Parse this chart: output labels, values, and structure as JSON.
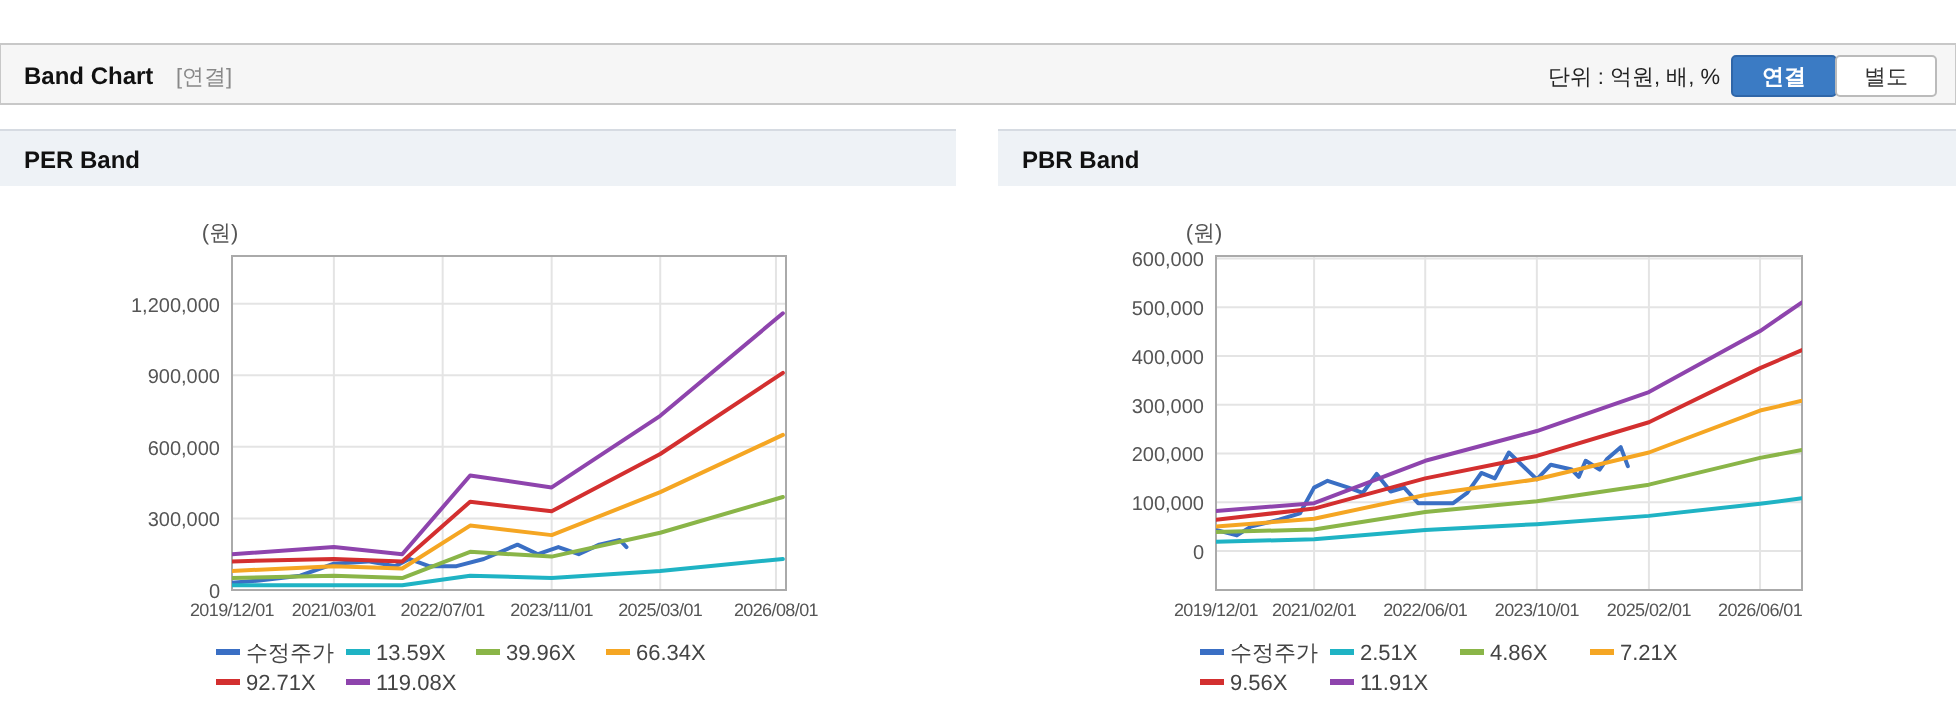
{
  "chart_data": [
    {
      "type": "other",
      "title": "Band Chart",
      "annotations": [
        "[연결]",
        "단위 : 억원, 배, %",
        "연결",
        "별도"
      ]
    },
    {
      "type": "line",
      "title": "PER Band",
      "ylabel": "(원)",
      "grid": true,
      "legend": "bottom",
      "xlim": [
        "2019-12-01",
        "2026-09-15"
      ],
      "ylim": [
        0,
        1400000
      ],
      "xticks": [
        {
          "value": "2019-12-01",
          "label": "2019/12/01"
        },
        {
          "value": "2021-03-01",
          "label": "2021/03/01"
        },
        {
          "value": "2022-07-01",
          "label": "2022/07/01"
        },
        {
          "value": "2023-11-01",
          "label": "2023/11/01"
        },
        {
          "value": "2025-03-01",
          "label": "2025/03/01"
        },
        {
          "value": "2026-08-01",
          "label": "2026/08/01"
        }
      ],
      "yticks": [
        0,
        {
          "value": 300000,
          "label": "300,000"
        },
        {
          "value": 600000,
          "label": "600,000"
        },
        {
          "value": 900000,
          "label": "900,000"
        },
        {
          "value": 1200000,
          "label": "1,200,000"
        }
      ],
      "series": [
        {
          "name": "수정주가",
          "color": "#3a6fc4",
          "x": [
            "2019-12",
            "2020-04",
            "2020-10",
            "2021-03",
            "2021-08",
            "2021-12",
            "2022-02",
            "2022-05",
            "2022-09",
            "2023-01",
            "2023-06",
            "2023-09",
            "2023-12",
            "2024-03",
            "2024-06",
            "2024-09",
            "2024-10"
          ],
          "values": [
            30000,
            40000,
            60000,
            110000,
            120000,
            100000,
            130000,
            100000,
            100000,
            130000,
            190000,
            150000,
            180000,
            150000,
            190000,
            210000,
            180000
          ]
        },
        {
          "name": "13.59X",
          "color": "#1fb3c4",
          "x": [
            "2019-12",
            "2022-01",
            "2022-11",
            "2023-11",
            "2025-03",
            "2026-09"
          ],
          "values": [
            20000,
            20000,
            60000,
            50000,
            80000,
            130000
          ]
        },
        {
          "name": "39.96X",
          "color": "#8ab548",
          "x": [
            "2019-12",
            "2021-03",
            "2022-01",
            "2022-11",
            "2023-11",
            "2025-03",
            "2026-09"
          ],
          "values": [
            50000,
            60000,
            50000,
            160000,
            140000,
            240000,
            390000
          ]
        },
        {
          "name": "66.34X",
          "color": "#f5a623",
          "x": [
            "2019-12",
            "2021-03",
            "2022-01",
            "2022-11",
            "2023-11",
            "2025-03",
            "2026-09"
          ],
          "values": [
            80000,
            100000,
            90000,
            270000,
            230000,
            410000,
            650000
          ]
        },
        {
          "name": "92.71X",
          "color": "#d32f2f",
          "x": [
            "2019-12",
            "2021-03",
            "2022-01",
            "2022-11",
            "2023-11",
            "2025-03",
            "2026-09"
          ],
          "values": [
            120000,
            130000,
            120000,
            370000,
            330000,
            570000,
            910000
          ]
        },
        {
          "name": "119.08X",
          "color": "#8e44ad",
          "x": [
            "2019-12",
            "2021-03",
            "2022-01",
            "2022-11",
            "2023-11",
            "2025-03",
            "2026-09"
          ],
          "values": [
            150000,
            180000,
            150000,
            480000,
            430000,
            730000,
            1160000
          ]
        }
      ]
    },
    {
      "type": "line",
      "title": "PBR Band",
      "ylabel": "(원)",
      "grid": true,
      "legend": "bottom",
      "xlim": [
        "2019-12-01",
        "2026-12-01"
      ],
      "ylim": [
        -80000,
        605000
      ],
      "xticks": [
        {
          "value": "2019-12-01",
          "label": "2019/12/01"
        },
        {
          "value": "2021-02-01",
          "label": "2021/02/01"
        },
        {
          "value": "2022-06-01",
          "label": "2022/06/01"
        },
        {
          "value": "2023-10-01",
          "label": "2023/10/01"
        },
        {
          "value": "2025-02-01",
          "label": "2025/02/01"
        },
        {
          "value": "2026-06-01",
          "label": "2026/06/01"
        }
      ],
      "yticks": [
        0,
        {
          "value": 100000,
          "label": "100,000"
        },
        {
          "value": 200000,
          "label": "200,000"
        },
        {
          "value": 300000,
          "label": "300,000"
        },
        {
          "value": 400000,
          "label": "400,000"
        },
        {
          "value": 500000,
          "label": "500,000"
        },
        {
          "value": 600000,
          "label": "600,000"
        }
      ],
      "series": [
        {
          "name": "수정주가",
          "color": "#3a6fc4",
          "x": [
            "2019-12",
            "2020-03",
            "2020-05",
            "2020-09",
            "2020-12",
            "2021-02",
            "2021-04",
            "2021-07",
            "2021-09",
            "2021-11",
            "2022-01",
            "2022-03",
            "2022-05",
            "2022-10",
            "2022-12",
            "2023-02",
            "2023-04",
            "2023-06",
            "2023-10",
            "2023-12",
            "2024-03",
            "2024-04",
            "2024-05",
            "2024-07",
            "2024-08",
            "2024-10",
            "2024-11"
          ],
          "values": [
            43000,
            32000,
            50000,
            64000,
            77000,
            130000,
            144000,
            130000,
            119000,
            158000,
            122000,
            130000,
            98000,
            98000,
            119000,
            160000,
            149000,
            202000,
            147000,
            177000,
            167000,
            152000,
            185000,
            167000,
            188000,
            213000,
            174000
          ]
        },
        {
          "name": "2.51X",
          "color": "#1fb3c4",
          "x": [
            "2019-12",
            "2021-02",
            "2022-06",
            "2023-10",
            "2025-02",
            "2026-06",
            "2026-12"
          ],
          "values": [
            19000,
            24000,
            43000,
            55000,
            72000,
            97000,
            108000
          ]
        },
        {
          "name": "4.86X",
          "color": "#8ab548",
          "x": [
            "2019-12",
            "2021-02",
            "2022-06",
            "2023-10",
            "2025-02",
            "2026-06",
            "2026-12"
          ],
          "values": [
            39000,
            44000,
            80000,
            102000,
            136000,
            191000,
            207000
          ]
        },
        {
          "name": "7.21X",
          "color": "#f5a623",
          "x": [
            "2019-12",
            "2021-02",
            "2022-06",
            "2023-10",
            "2025-02",
            "2026-06",
            "2026-12"
          ],
          "values": [
            50000,
            66000,
            115000,
            147000,
            202000,
            288000,
            308000
          ]
        },
        {
          "name": "9.56X",
          "color": "#d32f2f",
          "x": [
            "2019-12",
            "2021-02",
            "2022-06",
            "2023-10",
            "2025-02",
            "2026-06",
            "2026-12"
          ],
          "values": [
            64000,
            87000,
            149000,
            195000,
            264000,
            375000,
            412000
          ]
        },
        {
          "name": "11.91X",
          "color": "#8e44ad",
          "x": [
            "2019-12",
            "2021-02",
            "2022-06",
            "2023-10",
            "2025-02",
            "2026-06",
            "2026-12"
          ],
          "values": [
            82000,
            98000,
            185000,
            246000,
            326000,
            451000,
            510000
          ]
        }
      ]
    }
  ]
}
